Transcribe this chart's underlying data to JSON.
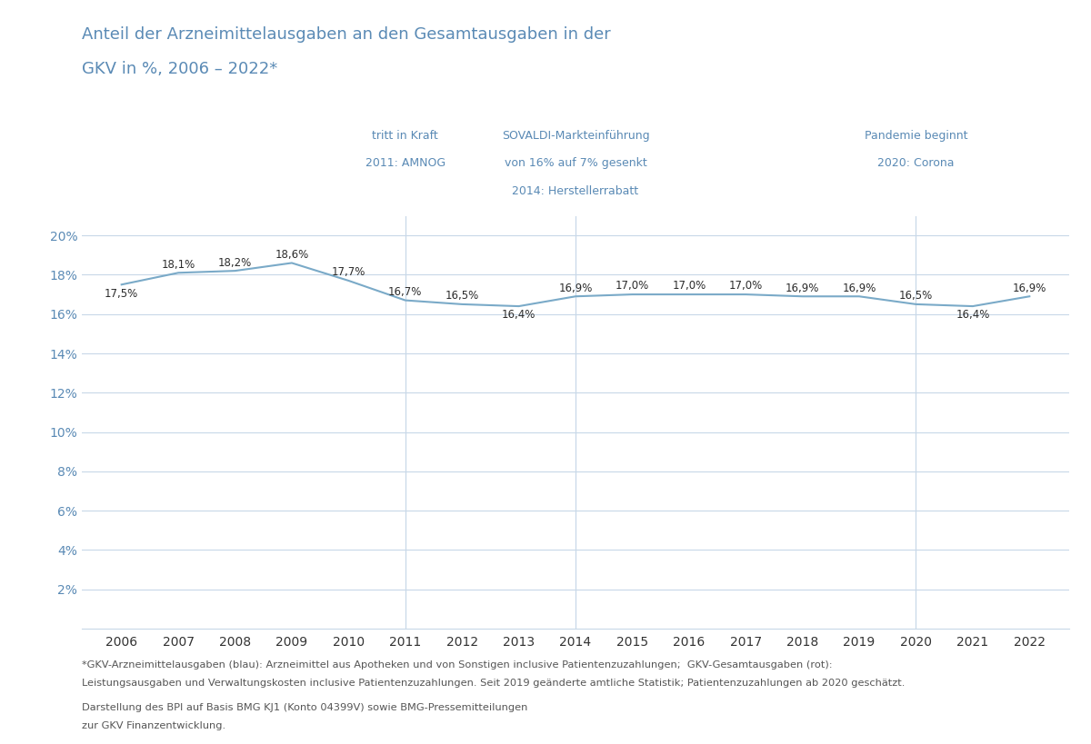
{
  "title_line1": "Anteil der Arzneimittelausgaben an den Gesamtausgaben in der",
  "title_line2": "GKV in %, 2006 – 2022*",
  "years": [
    2006,
    2007,
    2008,
    2009,
    2010,
    2011,
    2012,
    2013,
    2014,
    2015,
    2016,
    2017,
    2018,
    2019,
    2020,
    2021,
    2022
  ],
  "values": [
    17.5,
    18.1,
    18.2,
    18.6,
    17.7,
    16.7,
    16.5,
    16.4,
    16.9,
    17.0,
    17.0,
    17.0,
    16.9,
    16.9,
    16.5,
    16.4,
    16.9
  ],
  "line_color": "#7aaac8",
  "data_label_color": "#2c2c2c",
  "ytick_color": "#5a8ab5",
  "xtick_color": "#333333",
  "grid_color": "#c8d8e8",
  "vline_color": "#c8d8e8",
  "background_color": "#ffffff",
  "ylim": [
    0,
    21
  ],
  "yticks": [
    2,
    4,
    6,
    8,
    10,
    12,
    14,
    16,
    18,
    20
  ],
  "vline_years": [
    2011,
    2014,
    2020
  ],
  "annotation_2011_line1": "2011: AMNOG",
  "annotation_2011_line2": "tritt in Kraft",
  "annotation_2014_line1": "2014: Herstellerrabatt",
  "annotation_2014_line2": "von 16% auf 7% gesenkt",
  "annotation_2014_line3": "SOVALDI-Markteinführung",
  "annotation_2020_line1": "2020: Corona",
  "annotation_2020_line2": "Pandemie beginnt",
  "footer_line1": "*GKV-Arzneimittelausgaben (blau): Arzneimittel aus Apotheken und von Sonstigen inclusive Patientenzuzahlungen;  GKV-Gesamtausgaben (rot):",
  "footer_line2": "Leistungsausgaben und Verwaltungskosten inclusive Patientenzuzahlungen. Seit 2019 geänderte amtliche Statistik; Patientenzuzahlungen ab 2020 geschätzt.",
  "footer_line3": "Darstellung des BPI auf Basis BMG KJ1 (Konto 04399V) sowie BMG-Pressemitteilungen",
  "footer_line4": "zur GKV Finanzentwicklung.",
  "title_color": "#5a8ab5",
  "annotation_color": "#5a8ab5",
  "footer_color": "#555555"
}
